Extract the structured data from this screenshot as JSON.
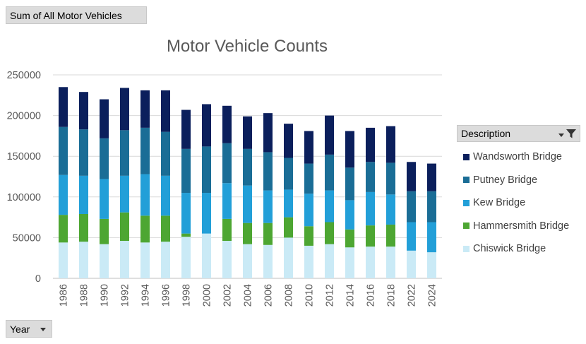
{
  "pivot": {
    "value_field": "Sum of All  Motor Vehicles",
    "axis_field": "Year",
    "legend_field": "Description"
  },
  "colors": {
    "Wandsworth Bridge": "#0b1f5c",
    "Putney Bridge": "#1a6d96",
    "Kew Bridge": "#229fd8",
    "Hammersmith Bridge": "#4da632",
    "Chiswick Bridge": "#caeaf6"
  },
  "chart_data": {
    "type": "bar",
    "stacked": true,
    "title": "Motor Vehicle Counts",
    "categories": [
      "1986",
      "1988",
      "1990",
      "1992",
      "1994",
      "1996",
      "1998",
      "2000",
      "2002",
      "2004",
      "2006",
      "2008",
      "2010",
      "2012",
      "2014",
      "2016",
      "2018",
      "2022",
      "2024"
    ],
    "ylim": [
      0,
      250000
    ],
    "yticks": [
      0,
      50000,
      100000,
      150000,
      200000,
      250000
    ],
    "grid": true,
    "legend_position": "right",
    "series": [
      {
        "name": "Chiswick Bridge",
        "values": [
          44000,
          45000,
          42000,
          46000,
          44000,
          45000,
          51000,
          55000,
          46000,
          42000,
          41000,
          50000,
          40000,
          42000,
          38000,
          39000,
          39000,
          34000,
          32000
        ]
      },
      {
        "name": "Hammersmith Bridge",
        "values": [
          34000,
          34000,
          31000,
          35000,
          33000,
          32000,
          4000,
          0,
          27000,
          26000,
          27000,
          25000,
          24000,
          27000,
          22000,
          26000,
          27000,
          0,
          0
        ]
      },
      {
        "name": "Kew Bridge",
        "values": [
          49000,
          47000,
          49000,
          45000,
          51000,
          49000,
          50000,
          50000,
          44000,
          46000,
          40000,
          34000,
          40000,
          39000,
          36000,
          41000,
          37000,
          35000,
          37000
        ]
      },
      {
        "name": "Putney Bridge",
        "values": [
          59000,
          57000,
          50000,
          56000,
          57000,
          54000,
          54000,
          57000,
          49000,
          45000,
          47000,
          39000,
          37000,
          44000,
          40000,
          37000,
          39000,
          38000,
          38000
        ]
      },
      {
        "name": "Wandsworth Bridge",
        "values": [
          49000,
          46000,
          48000,
          52000,
          46000,
          51000,
          48000,
          52000,
          46000,
          40000,
          48000,
          42000,
          40000,
          48000,
          45000,
          42000,
          45000,
          36000,
          34000
        ]
      }
    ]
  },
  "legend_order": [
    "Wandsworth Bridge",
    "Putney Bridge",
    "Kew Bridge",
    "Hammersmith Bridge",
    "Chiswick Bridge"
  ]
}
